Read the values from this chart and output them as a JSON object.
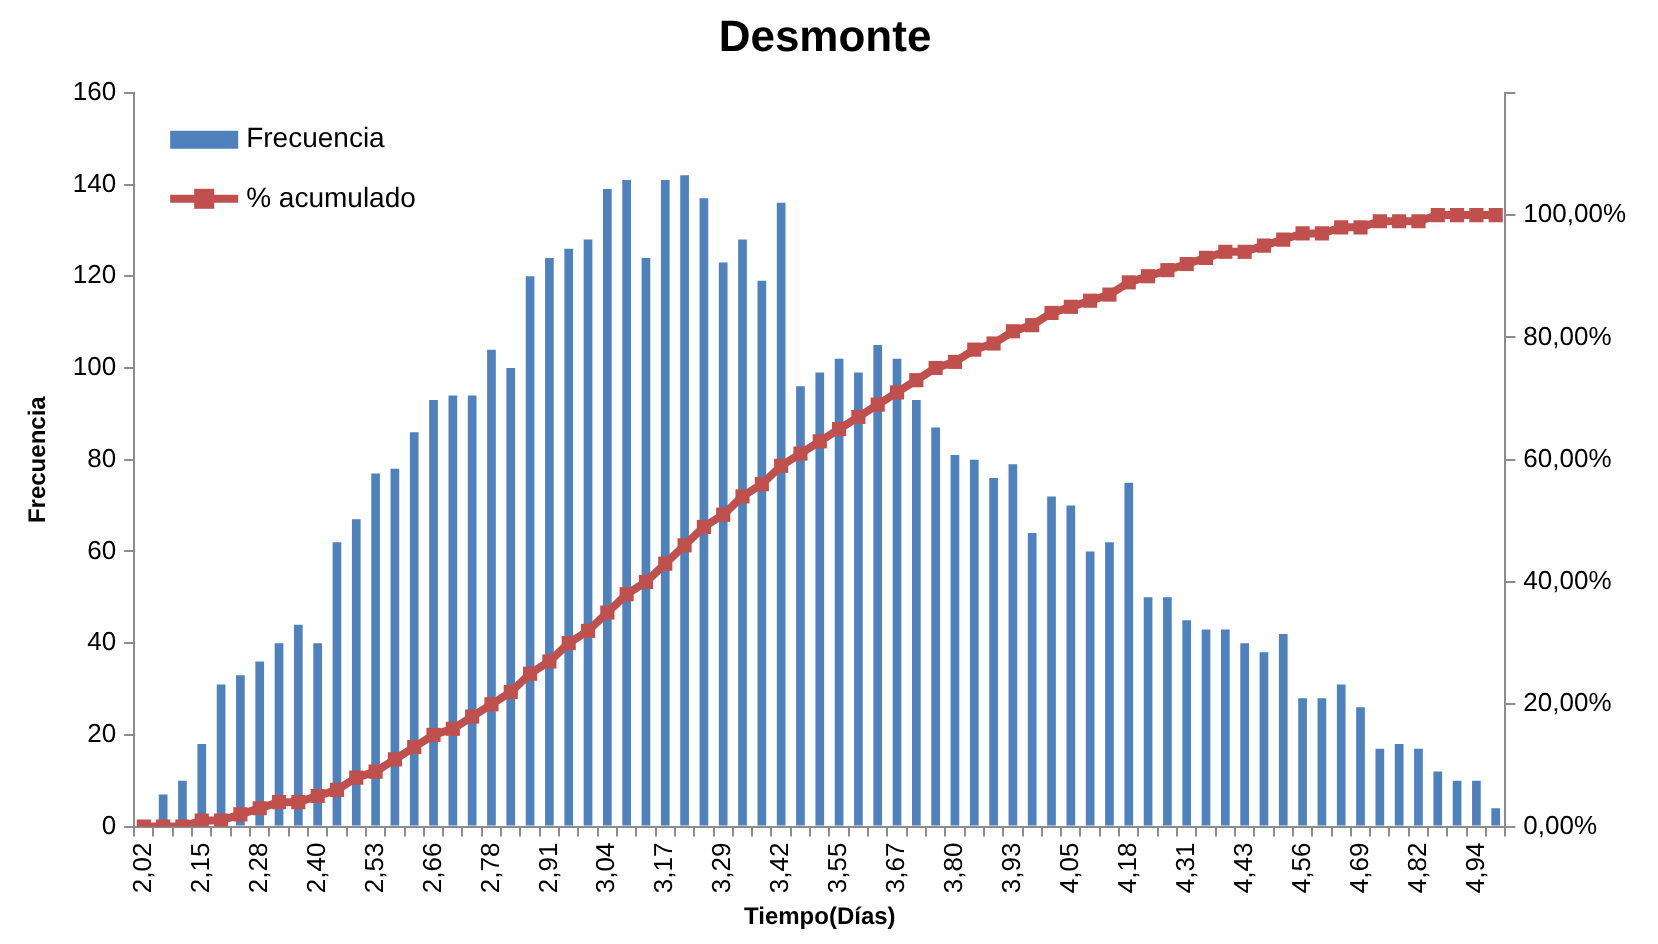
{
  "chart_data": {
    "type": "bar",
    "title": "Desmonte",
    "xlabel": "Tiempo(Días)",
    "ylabel": "Frecuencia",
    "categories": [
      "2,02",
      null,
      null,
      "2,15",
      null,
      null,
      "2,28",
      null,
      null,
      "2,40",
      null,
      null,
      "2,53",
      null,
      null,
      "2,66",
      null,
      null,
      "2,78",
      null,
      null,
      "2,91",
      null,
      null,
      "3,04",
      null,
      null,
      "3,17",
      null,
      null,
      "3,29",
      null,
      null,
      "3,42",
      null,
      null,
      "3,55",
      null,
      null,
      "3,67",
      null,
      null,
      "3,80",
      null,
      null,
      "3,93",
      null,
      null,
      "4,05",
      null,
      null,
      "4,18",
      null,
      null,
      "4,31",
      null,
      null,
      "4,43",
      null,
      null,
      "4,56",
      null,
      null,
      "4,69",
      null,
      null,
      "4,82",
      null,
      null,
      "4,94",
      null
    ],
    "series": [
      {
        "name": "Frecuencia",
        "color": "#4f81bd",
        "values": [
          0,
          7,
          10,
          18,
          31,
          33,
          36,
          40,
          44,
          40,
          62,
          67,
          77,
          78,
          86,
          93,
          94,
          94,
          104,
          100,
          120,
          124,
          126,
          128,
          139,
          141,
          124,
          141,
          142,
          137,
          123,
          128,
          119,
          136,
          96,
          99,
          102,
          99,
          105,
          102,
          93,
          87,
          81,
          80,
          76,
          79,
          64,
          72,
          70,
          60,
          62,
          75,
          50,
          50,
          45,
          43,
          43,
          40,
          38,
          42,
          28,
          28,
          31,
          26,
          17,
          18,
          17,
          12,
          10,
          10,
          4
        ]
      },
      {
        "name": "% acumulado",
        "type": "line",
        "axis": "y2",
        "color": "#c0504d",
        "values": [
          0,
          0,
          0,
          1,
          1,
          2,
          3,
          4,
          4,
          5,
          6,
          8,
          9,
          11,
          13,
          15,
          16,
          18,
          20,
          22,
          25,
          27,
          30,
          32,
          35,
          38,
          40,
          43,
          46,
          49,
          51,
          54,
          56,
          59,
          61,
          63,
          65,
          67,
          69,
          71,
          73,
          75,
          76,
          78,
          79,
          81,
          82,
          84,
          85,
          86,
          87,
          89,
          90,
          91,
          92,
          93,
          94,
          94,
          95,
          96,
          97,
          97,
          98,
          98,
          99,
          99,
          99,
          100,
          100,
          100,
          100
        ]
      }
    ],
    "ylim": [
      0,
      160
    ],
    "yticks": [
      0,
      20,
      40,
      60,
      80,
      100,
      120,
      140,
      160
    ],
    "y2lim": [
      0,
      120
    ],
    "y2ticks": [
      {
        "value": 0,
        "label": "0,00%"
      },
      {
        "value": 20,
        "label": "20,00%"
      },
      {
        "value": 40,
        "label": "40,00%"
      },
      {
        "value": 60,
        "label": "60,00%"
      },
      {
        "value": 80,
        "label": "80,00%"
      },
      {
        "value": 100,
        "label": "100,00%"
      },
      {
        "value": 120,
        "label": null
      }
    ],
    "grid": false,
    "legend": "top left",
    "marker": "square",
    "line_style": "solid"
  }
}
